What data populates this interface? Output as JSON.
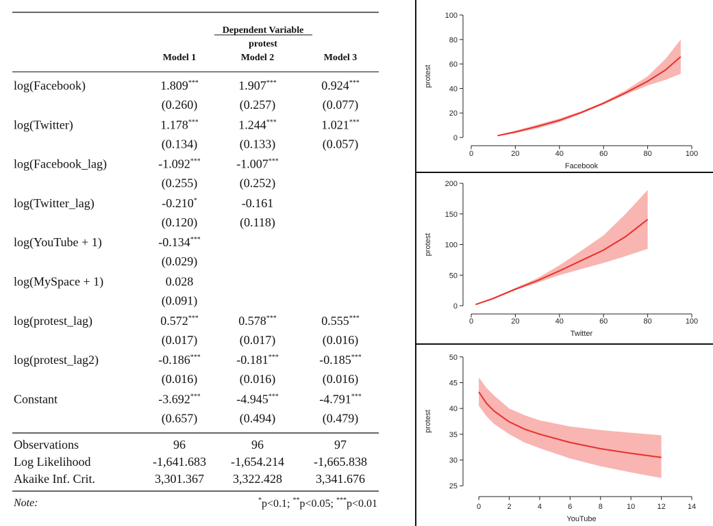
{
  "table": {
    "dep_var_label": "Dependent Variable",
    "dep_var_name": "protest",
    "models": [
      "Model 1",
      "Model 2",
      "Model 3"
    ],
    "rows": [
      {
        "label": "log(Facebook)",
        "coef": [
          "1.809***",
          "1.907***",
          "0.924***"
        ],
        "se": [
          "(0.260)",
          "(0.257)",
          "(0.077)"
        ]
      },
      {
        "label": "log(Twitter)",
        "coef": [
          "1.178***",
          "1.244***",
          "1.021***"
        ],
        "se": [
          "(0.134)",
          "(0.133)",
          "(0.057)"
        ]
      },
      {
        "label": "log(Facebook_lag)",
        "coef": [
          "-1.092***",
          "-1.007***",
          ""
        ],
        "se": [
          "(0.255)",
          "(0.252)",
          ""
        ]
      },
      {
        "label": "log(Twitter_lag)",
        "coef": [
          "-0.210*",
          "-0.161",
          ""
        ],
        "se": [
          "(0.120)",
          "(0.118)",
          ""
        ]
      },
      {
        "label": "log(YouTube + 1)",
        "coef": [
          "-0.134***",
          "",
          ""
        ],
        "se": [
          "(0.029)",
          "",
          ""
        ]
      },
      {
        "label": "log(MySpace + 1)",
        "coef": [
          "0.028",
          "",
          ""
        ],
        "se": [
          "(0.091)",
          "",
          ""
        ]
      },
      {
        "label": "log(protest_lag)",
        "coef": [
          "0.572***",
          "0.578***",
          "0.555***"
        ],
        "se": [
          "(0.017)",
          "(0.017)",
          "(0.016)"
        ]
      },
      {
        "label": "log(protest_lag2)",
        "coef": [
          "-0.186***",
          "-0.181***",
          "-0.185***"
        ],
        "se": [
          "(0.016)",
          "(0.016)",
          "(0.016)"
        ]
      },
      {
        "label": "Constant",
        "coef": [
          "-3.692***",
          "-4.945***",
          "-4.791***"
        ],
        "se": [
          "(0.657)",
          "(0.494)",
          "(0.479)"
        ]
      }
    ],
    "stats": [
      {
        "label": "Observations",
        "values": [
          "96",
          "96",
          "97"
        ]
      },
      {
        "label": "Log Likelihood",
        "values": [
          "-1,641.683",
          "-1,654.214",
          "-1,665.838"
        ]
      },
      {
        "label": "Akaike Inf. Crit.",
        "values": [
          "3,301.367",
          "3,322.428",
          "3,341.676"
        ]
      }
    ],
    "note_label": "Note:",
    "note_parts": [
      {
        "stars": "*",
        "text": "p<0.1; "
      },
      {
        "stars": "**",
        "text": "p<0.05; "
      },
      {
        "stars": "***",
        "text": "p<0.01"
      }
    ]
  },
  "chart_data": [
    {
      "type": "line",
      "xlabel": "Facebook",
      "ylabel": "protest",
      "xlim": [
        0,
        100
      ],
      "ylim": [
        0,
        100
      ],
      "xticks": [
        0,
        20,
        40,
        60,
        80,
        100
      ],
      "yticks": [
        0,
        20,
        40,
        60,
        80,
        100
      ],
      "line_color": "#e8302a",
      "band_color": "#f7a8a4",
      "series": [
        {
          "x": [
            12,
            20,
            30,
            40,
            50,
            60,
            70,
            80,
            88,
            95
          ],
          "y": [
            1.5,
            4.5,
            9,
            14,
            20.5,
            28,
            36.5,
            46,
            55,
            66
          ],
          "lower": [
            1,
            3.5,
            7.5,
            12.5,
            19.5,
            27,
            35,
            42.5,
            47,
            52
          ],
          "upper": [
            2,
            5.5,
            10.5,
            15.5,
            21.5,
            29,
            38.5,
            50,
            64,
            80
          ]
        }
      ]
    },
    {
      "type": "line",
      "xlabel": "Twitter",
      "ylabel": "protest",
      "xlim": [
        0,
        100
      ],
      "ylim": [
        0,
        200
      ],
      "xticks": [
        0,
        20,
        40,
        60,
        80,
        100
      ],
      "yticks": [
        0,
        50,
        100,
        150,
        200
      ],
      "line_color": "#e8302a",
      "band_color": "#f7a8a4",
      "series": [
        {
          "x": [
            2,
            10,
            20,
            30,
            40,
            50,
            60,
            70,
            80
          ],
          "y": [
            2,
            12,
            27,
            41,
            57,
            74,
            91,
            113,
            141
          ],
          "lower": [
            1.5,
            10.5,
            25.5,
            37.5,
            50,
            60,
            70,
            81,
            93
          ],
          "upper": [
            2.5,
            13.5,
            29,
            45,
            66,
            90,
            115,
            150,
            189
          ]
        }
      ]
    },
    {
      "type": "line",
      "xlabel": "YouTube",
      "ylabel": "protest",
      "xlim": [
        -0.5,
        14
      ],
      "ylim": [
        24.5,
        50.5
      ],
      "xticks": [
        0,
        2,
        4,
        6,
        8,
        10,
        12,
        14
      ],
      "yticks": [
        25,
        30,
        35,
        40,
        45,
        50
      ],
      "line_color": "#e8302a",
      "band_color": "#f7a8a4",
      "series": [
        {
          "x": [
            0,
            0.5,
            1,
            2,
            3,
            4,
            6,
            8,
            10,
            12
          ],
          "y": [
            43.2,
            41,
            39.5,
            37.4,
            36,
            35,
            33.4,
            32.2,
            31.3,
            30.5
          ],
          "lower": [
            40.5,
            38.5,
            37,
            35,
            33.4,
            32.3,
            30.3,
            28.8,
            27.6,
            26.5
          ],
          "upper": [
            46,
            44,
            42.5,
            40,
            38.7,
            37.7,
            36.5,
            35.8,
            35.3,
            34.8
          ]
        }
      ]
    }
  ]
}
